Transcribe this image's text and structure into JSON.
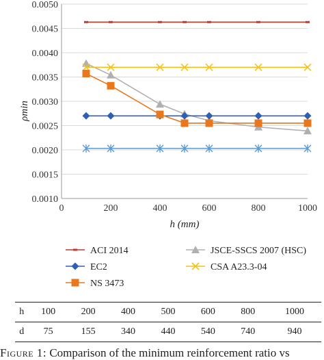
{
  "chart_data": {
    "type": "line",
    "title": "",
    "xlabel": "h (mm)",
    "ylabel": "ρmin",
    "xlim": [
      0,
      1000
    ],
    "ylim": [
      0.001,
      0.005
    ],
    "x_ticks": [
      "0",
      "200",
      "400",
      "600",
      "800",
      "1000"
    ],
    "y_ticks": [
      "0.0010",
      "0.0015",
      "0.0020",
      "0.0025",
      "0.0030",
      "0.0035",
      "0.0040",
      "0.0045",
      "0.0050"
    ],
    "grid": "horizontal",
    "legend_placement": "bottom",
    "x": [
      100,
      200,
      400,
      500,
      600,
      800,
      1000
    ],
    "series": [
      {
        "name": "ACI 2014",
        "color": "#c0392b",
        "marker": "dash",
        "values": [
          0.00463,
          0.00463,
          0.00463,
          0.00463,
          0.00463,
          0.00463,
          0.00463
        ]
      },
      {
        "name": "JSCE-SSCS 2007 (HSC)",
        "color": "#b0b0b0",
        "marker": "triangle",
        "values": [
          0.00378,
          0.00354,
          0.00294,
          0.00274,
          0.0026,
          0.00247,
          0.00239
        ]
      },
      {
        "name": "EC2",
        "color": "#2f5fb3",
        "marker": "diamond",
        "values": [
          0.0027,
          0.0027,
          0.0027,
          0.0027,
          0.0027,
          0.0027,
          0.0027
        ]
      },
      {
        "name": "CSA A23.3-04",
        "color": "#f2c21a",
        "marker": "x",
        "values": [
          0.0037,
          0.0037,
          0.0037,
          0.0037,
          0.0037,
          0.0037,
          0.0037
        ]
      },
      {
        "name": "NS 3473",
        "color": "#e8771e",
        "marker": "square",
        "values": [
          0.00357,
          0.00332,
          0.00273,
          0.00255,
          0.00255,
          0.00255,
          0.00255
        ]
      },
      {
        "name": "",
        "color": "#5b9bd5",
        "marker": "asterisk",
        "values": [
          0.00203,
          0.00203,
          0.00203,
          0.00203,
          0.00203,
          0.00203,
          0.00203
        ]
      }
    ]
  },
  "table": {
    "rows": [
      {
        "label": "h",
        "values": [
          "100",
          "200",
          "400",
          "500",
          "600",
          "800",
          "1000"
        ]
      },
      {
        "label": "d",
        "values": [
          "75",
          "155",
          "340",
          "440",
          "540",
          "740",
          "940"
        ]
      }
    ]
  },
  "caption": {
    "figure_label": "Figure 1:",
    "text": " Comparison of the minimum reinforcement ratio vs"
  }
}
